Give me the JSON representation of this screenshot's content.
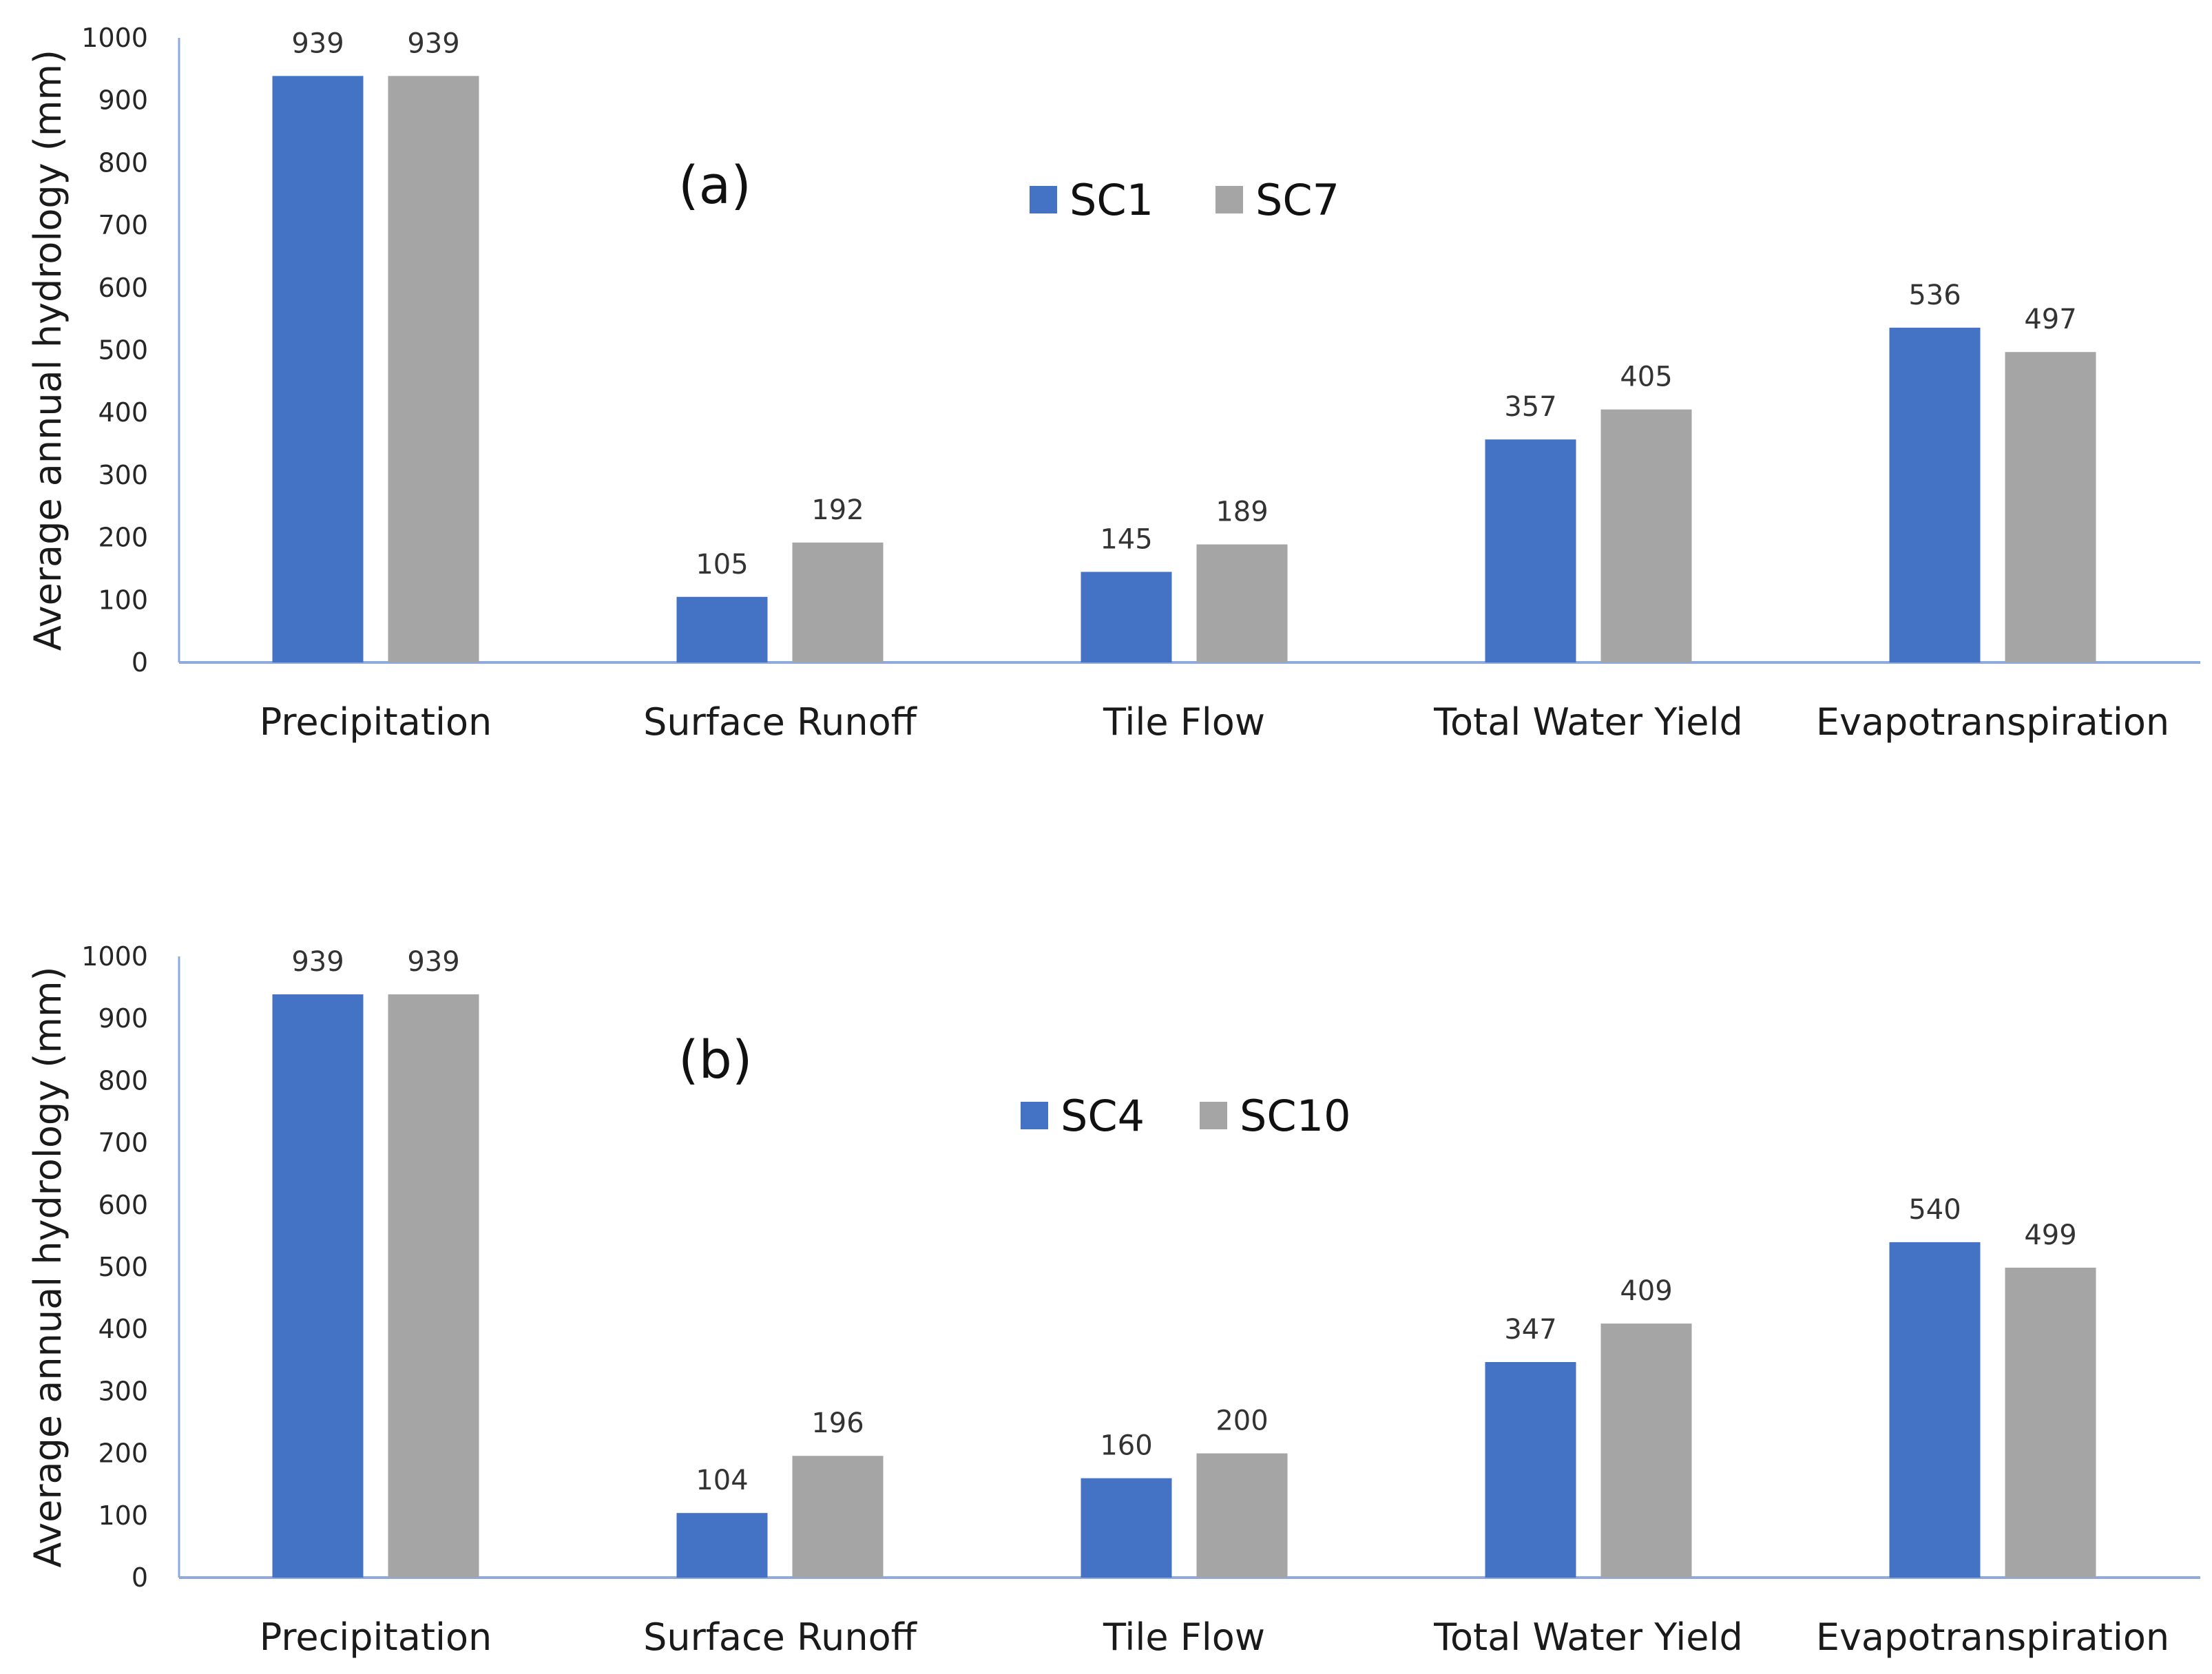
{
  "chart_data": [
    {
      "type": "bar",
      "panel_label": "(a)",
      "ylabel": "Average annual hydrology (mm)",
      "xlabel": "",
      "ylim": [
        0,
        1000
      ],
      "yticks": [
        "0",
        "100",
        "200",
        "300",
        "400",
        "500",
        "600",
        "700",
        "800",
        "900",
        "1000"
      ],
      "grid": false,
      "legend_position": "top-center",
      "categories": [
        "Precipitation",
        "Surface Runoff",
        "Tile Flow",
        "Total Water Yield",
        "Evapotranspiration"
      ],
      "series": [
        {
          "name": "SC1",
          "color": "#4472C4",
          "values": [
            939,
            105,
            145,
            357,
            536
          ]
        },
        {
          "name": "SC7",
          "color": "#A5A5A5",
          "values": [
            939,
            192,
            189,
            405,
            497
          ]
        }
      ]
    },
    {
      "type": "bar",
      "panel_label": "(b)",
      "ylabel": "Average annual hydrology (mm)",
      "xlabel": "",
      "ylim": [
        0,
        1000
      ],
      "yticks": [
        "0",
        "100",
        "200",
        "300",
        "400",
        "500",
        "600",
        "700",
        "800",
        "900",
        "1000"
      ],
      "grid": false,
      "legend_position": "top-center",
      "categories": [
        "Precipitation",
        "Surface Runoff",
        "Tile Flow",
        "Total Water Yield",
        "Evapotranspiration"
      ],
      "series": [
        {
          "name": "SC4",
          "color": "#4472C4",
          "values": [
            939,
            104,
            160,
            347,
            540
          ]
        },
        {
          "name": "SC10",
          "color": "#A5A5A5",
          "values": [
            939,
            196,
            200,
            409,
            499
          ]
        }
      ]
    }
  ],
  "colors": {
    "axis": "#8FAADC",
    "text": "#262626"
  }
}
